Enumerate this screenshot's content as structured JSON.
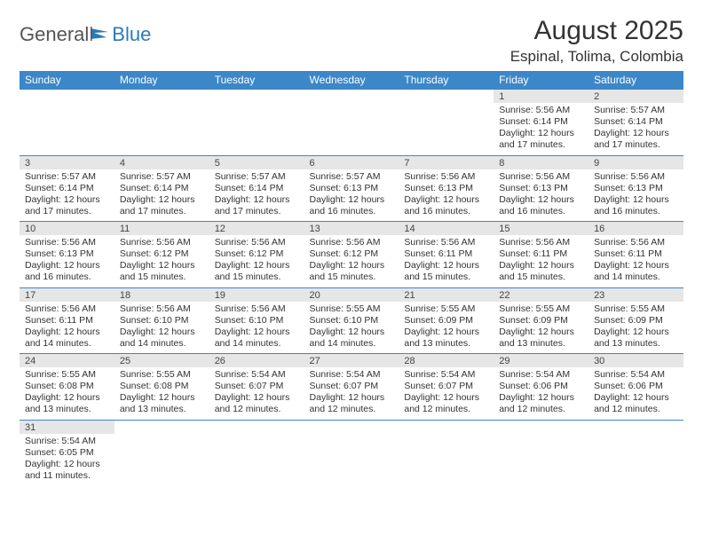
{
  "brand": {
    "part1": "General",
    "part2": "Blue"
  },
  "title": "August 2025",
  "location": "Espinal, Tolima, Colombia",
  "colors": {
    "header_bg": "#3b87c8",
    "header_text": "#ffffff",
    "daynum_bg": "#e6e6e6",
    "rule": "#3b87c8",
    "text": "#333333",
    "logo_gray": "#555555",
    "logo_blue": "#2a7ab8",
    "page_bg": "#ffffff"
  },
  "weekdays": [
    "Sunday",
    "Monday",
    "Tuesday",
    "Wednesday",
    "Thursday",
    "Friday",
    "Saturday"
  ],
  "weeks": [
    {
      "nums": [
        "",
        "",
        "",
        "",
        "",
        "1",
        "2"
      ],
      "cells": [
        null,
        null,
        null,
        null,
        null,
        {
          "sunrise": "5:56 AM",
          "sunset": "6:14 PM",
          "daylight": "12 hours and 17 minutes."
        },
        {
          "sunrise": "5:57 AM",
          "sunset": "6:14 PM",
          "daylight": "12 hours and 17 minutes."
        }
      ]
    },
    {
      "nums": [
        "3",
        "4",
        "5",
        "6",
        "7",
        "8",
        "9"
      ],
      "cells": [
        {
          "sunrise": "5:57 AM",
          "sunset": "6:14 PM",
          "daylight": "12 hours and 17 minutes."
        },
        {
          "sunrise": "5:57 AM",
          "sunset": "6:14 PM",
          "daylight": "12 hours and 17 minutes."
        },
        {
          "sunrise": "5:57 AM",
          "sunset": "6:14 PM",
          "daylight": "12 hours and 17 minutes."
        },
        {
          "sunrise": "5:57 AM",
          "sunset": "6:13 PM",
          "daylight": "12 hours and 16 minutes."
        },
        {
          "sunrise": "5:56 AM",
          "sunset": "6:13 PM",
          "daylight": "12 hours and 16 minutes."
        },
        {
          "sunrise": "5:56 AM",
          "sunset": "6:13 PM",
          "daylight": "12 hours and 16 minutes."
        },
        {
          "sunrise": "5:56 AM",
          "sunset": "6:13 PM",
          "daylight": "12 hours and 16 minutes."
        }
      ]
    },
    {
      "nums": [
        "10",
        "11",
        "12",
        "13",
        "14",
        "15",
        "16"
      ],
      "cells": [
        {
          "sunrise": "5:56 AM",
          "sunset": "6:13 PM",
          "daylight": "12 hours and 16 minutes."
        },
        {
          "sunrise": "5:56 AM",
          "sunset": "6:12 PM",
          "daylight": "12 hours and 15 minutes."
        },
        {
          "sunrise": "5:56 AM",
          "sunset": "6:12 PM",
          "daylight": "12 hours and 15 minutes."
        },
        {
          "sunrise": "5:56 AM",
          "sunset": "6:12 PM",
          "daylight": "12 hours and 15 minutes."
        },
        {
          "sunrise": "5:56 AM",
          "sunset": "6:11 PM",
          "daylight": "12 hours and 15 minutes."
        },
        {
          "sunrise": "5:56 AM",
          "sunset": "6:11 PM",
          "daylight": "12 hours and 15 minutes."
        },
        {
          "sunrise": "5:56 AM",
          "sunset": "6:11 PM",
          "daylight": "12 hours and 14 minutes."
        }
      ]
    },
    {
      "nums": [
        "17",
        "18",
        "19",
        "20",
        "21",
        "22",
        "23"
      ],
      "cells": [
        {
          "sunrise": "5:56 AM",
          "sunset": "6:11 PM",
          "daylight": "12 hours and 14 minutes."
        },
        {
          "sunrise": "5:56 AM",
          "sunset": "6:10 PM",
          "daylight": "12 hours and 14 minutes."
        },
        {
          "sunrise": "5:56 AM",
          "sunset": "6:10 PM",
          "daylight": "12 hours and 14 minutes."
        },
        {
          "sunrise": "5:55 AM",
          "sunset": "6:10 PM",
          "daylight": "12 hours and 14 minutes."
        },
        {
          "sunrise": "5:55 AM",
          "sunset": "6:09 PM",
          "daylight": "12 hours and 13 minutes."
        },
        {
          "sunrise": "5:55 AM",
          "sunset": "6:09 PM",
          "daylight": "12 hours and 13 minutes."
        },
        {
          "sunrise": "5:55 AM",
          "sunset": "6:09 PM",
          "daylight": "12 hours and 13 minutes."
        }
      ]
    },
    {
      "nums": [
        "24",
        "25",
        "26",
        "27",
        "28",
        "29",
        "30"
      ],
      "cells": [
        {
          "sunrise": "5:55 AM",
          "sunset": "6:08 PM",
          "daylight": "12 hours and 13 minutes."
        },
        {
          "sunrise": "5:55 AM",
          "sunset": "6:08 PM",
          "daylight": "12 hours and 13 minutes."
        },
        {
          "sunrise": "5:54 AM",
          "sunset": "6:07 PM",
          "daylight": "12 hours and 12 minutes."
        },
        {
          "sunrise": "5:54 AM",
          "sunset": "6:07 PM",
          "daylight": "12 hours and 12 minutes."
        },
        {
          "sunrise": "5:54 AM",
          "sunset": "6:07 PM",
          "daylight": "12 hours and 12 minutes."
        },
        {
          "sunrise": "5:54 AM",
          "sunset": "6:06 PM",
          "daylight": "12 hours and 12 minutes."
        },
        {
          "sunrise": "5:54 AM",
          "sunset": "6:06 PM",
          "daylight": "12 hours and 12 minutes."
        }
      ]
    },
    {
      "nums": [
        "31",
        "",
        "",
        "",
        "",
        "",
        ""
      ],
      "cells": [
        {
          "sunrise": "5:54 AM",
          "sunset": "6:05 PM",
          "daylight": "12 hours and 11 minutes."
        },
        null,
        null,
        null,
        null,
        null,
        null
      ]
    }
  ],
  "labels": {
    "sunrise": "Sunrise: ",
    "sunset": "Sunset: ",
    "daylight": "Daylight: "
  }
}
